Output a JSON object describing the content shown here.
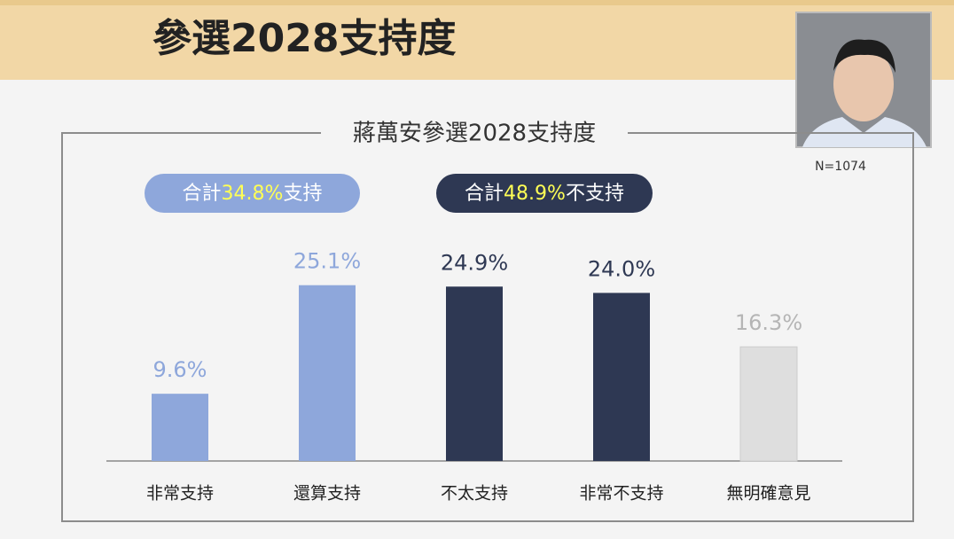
{
  "header": {
    "title": "參選2028支持度"
  },
  "chart_data": {
    "type": "bar",
    "title": "蔣萬安參選2028支持度",
    "note": "N=1074",
    "pills": [
      {
        "parts": [
          "合計",
          "34.8%",
          "支持"
        ],
        "color": "#8ea7db"
      },
      {
        "parts": [
          "合計",
          "48.9%",
          "不支持"
        ],
        "color": "#2e3853"
      }
    ],
    "categories": [
      "非常支持",
      "還算支持",
      "不太支持",
      "非常不支持",
      "無明確意見"
    ],
    "values": [
      9.6,
      25.1,
      24.9,
      24.0,
      16.3
    ],
    "value_labels": [
      "9.6%",
      "25.1%",
      "24.9%",
      "24.0%",
      "16.3%"
    ],
    "colors": [
      "#8ea7db",
      "#8ea7db",
      "#2e3853",
      "#2e3853",
      "#dedede"
    ],
    "value_label_colors": [
      "#8ea7db",
      "#8ea7db",
      "#2e3853",
      "#2e3853",
      "#b5b5b5"
    ]
  }
}
